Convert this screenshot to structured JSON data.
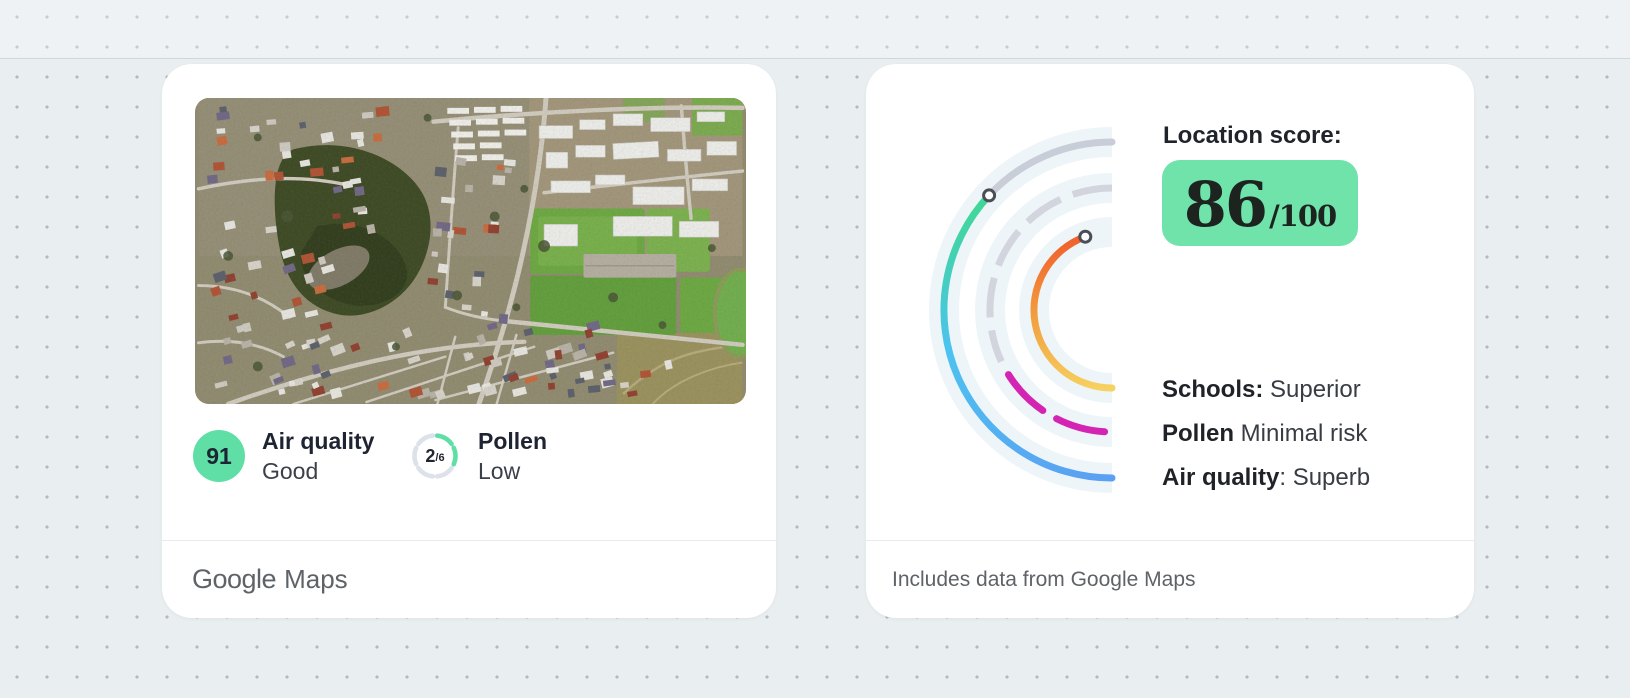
{
  "left_card": {
    "map": {
      "description": "satellite aerial view of suburb with sports fields"
    },
    "air_quality": {
      "score": "91",
      "label": "Air quality",
      "status": "Good"
    },
    "pollen": {
      "value": "2",
      "max": "/6",
      "label": "Pollen",
      "status": "Low"
    },
    "footer": {
      "google": "Google",
      "maps": "Maps"
    }
  },
  "right_card": {
    "score_label": "Location score:",
    "score": "86",
    "score_max": "/100",
    "metrics": [
      {
        "label": "Schools:",
        "value": " Superior"
      },
      {
        "label": "Pollen",
        "value": " Minimal risk"
      },
      {
        "label": "Air quality",
        "value": ": Superb"
      }
    ],
    "footer": "Includes data from Google Maps"
  },
  "colors": {
    "badge_green": "#70e3ab",
    "chip_green": "#5fdfa6",
    "gauge_green": "#3fd98f",
    "gauge_cyan": "#4cc3f0",
    "gauge_blue": "#5b9ff3",
    "gauge_orange": "#f05a2c",
    "gauge_amber": "#f2a13f",
    "gauge_yellow": "#f6d262",
    "gauge_magenta": "#d424b4",
    "gauge_track_gray": "#c9cdd8",
    "gauge_band": "#eef5f8"
  }
}
